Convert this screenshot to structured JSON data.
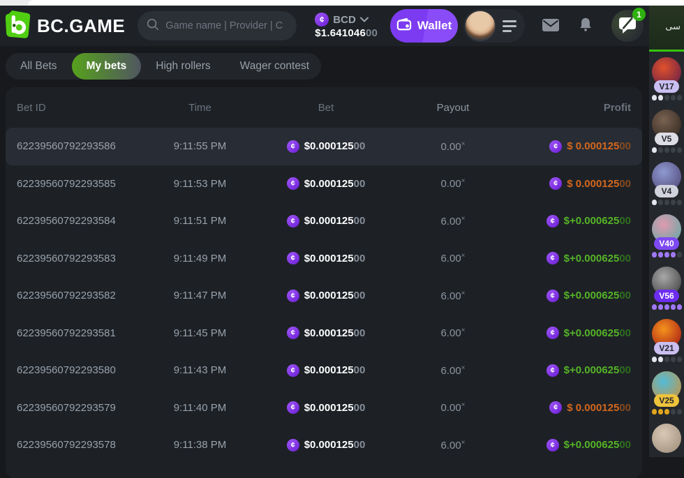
{
  "header": {
    "logo": "BC.GAME",
    "search": {
      "placeholder": "Game name | Provider | C"
    },
    "currency": {
      "code": "BCD",
      "balance": "$1.641046",
      "balance_dim": "00"
    },
    "wallet": {
      "label": "Wallet"
    },
    "chat": {
      "badge": "1"
    }
  },
  "chat_panel": {
    "header_text": "سى"
  },
  "tabs": [
    {
      "label": "All Bets",
      "active": false
    },
    {
      "label": "My bets",
      "active": true
    },
    {
      "label": "High rollers",
      "active": false
    },
    {
      "label": "Wager contest",
      "active": false
    }
  ],
  "table": {
    "columns": [
      "Bet ID",
      "Time",
      "Bet",
      "Payout",
      "Profit"
    ],
    "multiplier_symbol": "×",
    "rows": [
      {
        "bet_id": "62239560792293586",
        "time": "9:11:55 PM",
        "bet": "$0.000125",
        "bet_dim": "00",
        "payout": "0.00",
        "profit": "$ 0.000125",
        "profit_dim": "00",
        "win": false,
        "highlighted": true
      },
      {
        "bet_id": "62239560792293585",
        "time": "9:11:53 PM",
        "bet": "$0.000125",
        "bet_dim": "00",
        "payout": "0.00",
        "profit": "$ 0.000125",
        "profit_dim": "00",
        "win": false,
        "highlighted": false
      },
      {
        "bet_id": "62239560792293584",
        "time": "9:11:51 PM",
        "bet": "$0.000125",
        "bet_dim": "00",
        "payout": "6.00",
        "profit": "$+0.000625",
        "profit_dim": "00",
        "win": true,
        "highlighted": false
      },
      {
        "bet_id": "62239560792293583",
        "time": "9:11:49 PM",
        "bet": "$0.000125",
        "bet_dim": "00",
        "payout": "6.00",
        "profit": "$+0.000625",
        "profit_dim": "00",
        "win": true,
        "highlighted": false
      },
      {
        "bet_id": "62239560792293582",
        "time": "9:11:47 PM",
        "bet": "$0.000125",
        "bet_dim": "00",
        "payout": "6.00",
        "profit": "$+0.000625",
        "profit_dim": "00",
        "win": true,
        "highlighted": false
      },
      {
        "bet_id": "62239560792293581",
        "time": "9:11:45 PM",
        "bet": "$0.000125",
        "bet_dim": "00",
        "payout": "6.00",
        "profit": "$+0.000625",
        "profit_dim": "00",
        "win": true,
        "highlighted": false
      },
      {
        "bet_id": "62239560792293580",
        "time": "9:11:43 PM",
        "bet": "$0.000125",
        "bet_dim": "00",
        "payout": "6.00",
        "profit": "$+0.000625",
        "profit_dim": "00",
        "win": true,
        "highlighted": false
      },
      {
        "bet_id": "62239560792293579",
        "time": "9:11:40 PM",
        "bet": "$0.000125",
        "bet_dim": "00",
        "payout": "0.00",
        "profit": "$ 0.000125",
        "profit_dim": "00",
        "win": false,
        "highlighted": false
      },
      {
        "bet_id": "62239560792293578",
        "time": "9:11:38 PM",
        "bet": "$0.000125",
        "bet_dim": "00",
        "payout": "6.00",
        "profit": "$+0.000625",
        "profit_dim": "00",
        "win": true,
        "highlighted": false
      }
    ]
  },
  "sidebar": {
    "users": [
      {
        "level": "V17",
        "dots_lit": 2,
        "badge_bg": "#c9bff2",
        "badge_fg": "#23262b",
        "dot_color": "#e4e4ec",
        "avatar": [
          "#e0512c",
          "#5a1a4a"
        ],
        "partial": false
      },
      {
        "level": "V5",
        "dots_lit": 1,
        "badge_bg": "#dddde6",
        "badge_fg": "#23262b",
        "dot_color": "#e4e4ec",
        "avatar": [
          "#7a6352",
          "#2a211b"
        ],
        "partial": false
      },
      {
        "level": "V4",
        "dots_lit": 1,
        "badge_bg": "#d2d2dc",
        "badge_fg": "#23262b",
        "dot_color": "#e4e4ec",
        "avatar": [
          "#8f9ad0",
          "#4a4070"
        ],
        "partial": false
      },
      {
        "level": "V40",
        "dots_lit": 4,
        "badge_bg": "#7e49f2",
        "badge_fg": "#ffffff",
        "dot_color": "#a078f5",
        "avatar": [
          "#e09ab0",
          "#57aaa2"
        ],
        "partial": false
      },
      {
        "level": "V56",
        "dots_lit": 5,
        "badge_bg": "#6d2df0",
        "badge_fg": "#ffffff",
        "dot_color": "#a078f5",
        "avatar": [
          "#a8a8a8",
          "#383838"
        ],
        "partial": false
      },
      {
        "level": "V21",
        "dots_lit": 2,
        "badge_bg": "#cabff0",
        "badge_fg": "#23262b",
        "dot_color": "#e4e4ec",
        "avatar": [
          "#f5921e",
          "#a01212"
        ],
        "partial": false
      },
      {
        "level": "V25",
        "dots_lit": 3,
        "badge_bg": "#eec33c",
        "badge_fg": "#23262b",
        "dot_color": "#e0a51c",
        "avatar": [
          "#52bcd8",
          "#d09038"
        ],
        "partial": false
      },
      {
        "level": "",
        "dots_lit": 0,
        "badge_bg": "",
        "badge_fg": "",
        "dot_color": "",
        "avatar": [
          "#d8c8b4",
          "#9a8a78"
        ],
        "partial": true
      }
    ]
  },
  "colors": {
    "accent_green": "#50cf12",
    "brand_purple": "#7c3bf0",
    "win_green": "#55b426",
    "loss_orange": "#d4671c",
    "coin_purple": "#8a3ff0",
    "badge_green": "#2eb00e"
  }
}
